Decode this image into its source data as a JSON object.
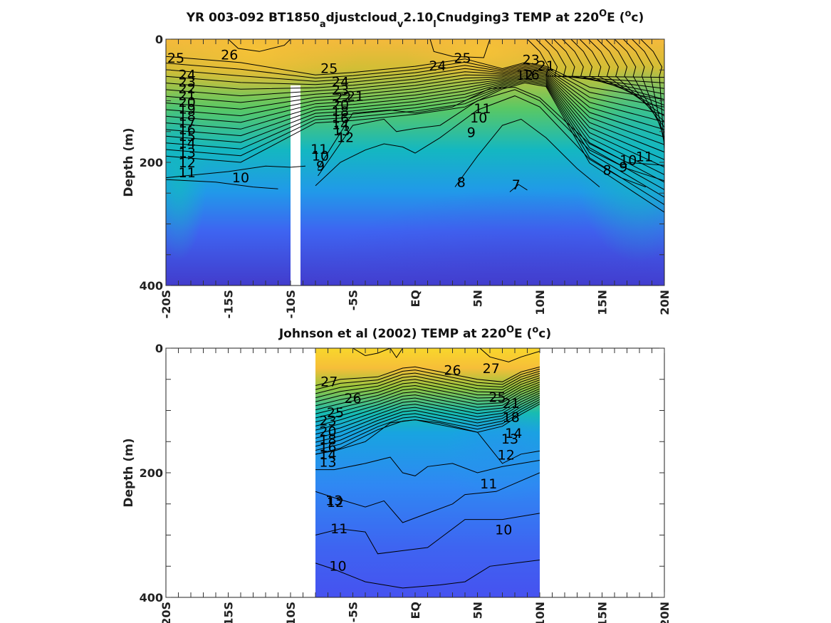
{
  "chart_data": [
    {
      "type": "contour",
      "title_parts": [
        "YR 003-092 BT1850",
        "a",
        "djustcloud",
        "v",
        "2.10",
        "l",
        "Cnudging3 TEMP at 220",
        "O",
        "E (",
        "o",
        "c)"
      ],
      "xlabel": "",
      "ylabel": "Depth (m)",
      "xlim": [
        -20,
        20
      ],
      "ylim": [
        400,
        0
      ],
      "x_ticks": [
        -20,
        -15,
        -10,
        -5,
        0,
        5,
        10,
        15,
        20
      ],
      "x_tick_labels": [
        "-20S",
        "-15S",
        "-10S",
        "-5S",
        "EQ",
        "5N",
        "10N",
        "15N",
        "20N"
      ],
      "y_ticks": [
        0,
        200,
        400
      ],
      "y_tick_labels": [
        "0",
        "200",
        "400"
      ],
      "data_extent_x": [
        -20,
        20
      ],
      "missing_column": {
        "x": [
          -10,
          -9.2
        ],
        "depth_from": 75
      },
      "colormap": "parula",
      "contour_interval": 1,
      "contour_labels": [
        {
          "x": -19.2,
          "depth": 30,
          "text": "25"
        },
        {
          "x": -14.9,
          "depth": 25,
          "text": "26"
        },
        {
          "x": -6.9,
          "depth": 47,
          "text": "25"
        },
        {
          "x": 1.8,
          "depth": 43,
          "text": "24"
        },
        {
          "x": 3.8,
          "depth": 30,
          "text": "25"
        },
        {
          "x": 9.3,
          "depth": 33,
          "text": "23"
        },
        {
          "x": 10.5,
          "depth": 43,
          "text": "21"
        },
        {
          "x": 9.3,
          "depth": 57,
          "text": "16"
        },
        {
          "x": 8.8,
          "depth": 58,
          "text": "12"
        },
        {
          "x": -18.3,
          "depth": 57,
          "text": "24"
        },
        {
          "x": -18.3,
          "depth": 69,
          "text": "23"
        },
        {
          "x": -18.3,
          "depth": 80,
          "text": "22"
        },
        {
          "x": -18.3,
          "depth": 91,
          "text": "21"
        },
        {
          "x": -18.3,
          "depth": 102,
          "text": "20"
        },
        {
          "x": -18.3,
          "depth": 113,
          "text": "19"
        },
        {
          "x": -18.3,
          "depth": 124,
          "text": "18"
        },
        {
          "x": -18.3,
          "depth": 135,
          "text": "17"
        },
        {
          "x": -18.3,
          "depth": 146,
          "text": "16"
        },
        {
          "x": -18.3,
          "depth": 157,
          "text": "15"
        },
        {
          "x": -18.3,
          "depth": 168,
          "text": "14"
        },
        {
          "x": -18.3,
          "depth": 184,
          "text": "13"
        },
        {
          "x": -18.3,
          "depth": 200,
          "text": "12"
        },
        {
          "x": -18.3,
          "depth": 216,
          "text": "11"
        },
        {
          "x": -14.0,
          "depth": 224,
          "text": "10"
        },
        {
          "x": -6.0,
          "depth": 69,
          "text": "24"
        },
        {
          "x": -6.0,
          "depth": 82,
          "text": "23"
        },
        {
          "x": -5.8,
          "depth": 94,
          "text": "22"
        },
        {
          "x": -4.8,
          "depth": 92,
          "text": "21"
        },
        {
          "x": -6.0,
          "depth": 106,
          "text": "20"
        },
        {
          "x": -6.0,
          "depth": 117,
          "text": "18"
        },
        {
          "x": -6.0,
          "depth": 128,
          "text": "16"
        },
        {
          "x": -6.0,
          "depth": 138,
          "text": "14"
        },
        {
          "x": -5.9,
          "depth": 148,
          "text": "13"
        },
        {
          "x": -5.6,
          "depth": 159,
          "text": "12"
        },
        {
          "x": -7.7,
          "depth": 178,
          "text": "11"
        },
        {
          "x": -7.6,
          "depth": 189,
          "text": "10"
        },
        {
          "x": -7.6,
          "depth": 205,
          "text": "9"
        },
        {
          "x": 5.4,
          "depth": 112,
          "text": "11"
        },
        {
          "x": 5.1,
          "depth": 127,
          "text": "10"
        },
        {
          "x": 4.5,
          "depth": 151,
          "text": "9"
        },
        {
          "x": 3.7,
          "depth": 232,
          "text": "8"
        },
        {
          "x": 8.1,
          "depth": 236,
          "text": "7"
        },
        {
          "x": 15.4,
          "depth": 212,
          "text": "8"
        },
        {
          "x": 16.7,
          "depth": 207,
          "text": "9"
        },
        {
          "x": 17.1,
          "depth": 196,
          "text": "10"
        },
        {
          "x": 18.4,
          "depth": 190,
          "text": "11"
        }
      ]
    },
    {
      "type": "contour",
      "title_parts": [
        "Johnson et al (2002) TEMP at 220",
        "O",
        "E (",
        "o",
        "c)"
      ],
      "xlabel": "",
      "ylabel": "Depth (m)",
      "xlim": [
        -20,
        20
      ],
      "ylim": [
        400,
        0
      ],
      "x_ticks": [
        -20,
        -15,
        -10,
        -5,
        0,
        5,
        10,
        15,
        20
      ],
      "x_tick_labels": [
        "-20S",
        "-15S",
        "-10S",
        "-5S",
        "EQ",
        "5N",
        "10N",
        "15N",
        "20N"
      ],
      "y_ticks": [
        0,
        200,
        400
      ],
      "y_tick_labels": [
        "0",
        "200",
        "400"
      ],
      "data_extent_x": [
        -8,
        10
      ],
      "colormap": "parula",
      "contour_interval": 1,
      "contour_labels": [
        {
          "x": -6.9,
          "depth": 53,
          "text": "27"
        },
        {
          "x": 3.0,
          "depth": 35,
          "text": "26"
        },
        {
          "x": 6.1,
          "depth": 32,
          "text": "27"
        },
        {
          "x": -5.0,
          "depth": 80,
          "text": "26"
        },
        {
          "x": 6.6,
          "depth": 78,
          "text": "25"
        },
        {
          "x": -6.4,
          "depth": 103,
          "text": "25"
        },
        {
          "x": -7.0,
          "depth": 116,
          "text": "23"
        },
        {
          "x": -7.0,
          "depth": 133,
          "text": "20"
        },
        {
          "x": -7.0,
          "depth": 146,
          "text": "18"
        },
        {
          "x": -7.0,
          "depth": 158,
          "text": "16"
        },
        {
          "x": -7.0,
          "depth": 170,
          "text": "14"
        },
        {
          "x": -7.0,
          "depth": 182,
          "text": "13"
        },
        {
          "x": -6.5,
          "depth": 244,
          "text": "13"
        },
        {
          "x": -6.4,
          "depth": 247,
          "text": "12"
        },
        {
          "x": 7.3,
          "depth": 171,
          "text": "12"
        },
        {
          "x": 7.6,
          "depth": 145,
          "text": "13"
        },
        {
          "x": 7.9,
          "depth": 136,
          "text": "14"
        },
        {
          "x": 7.7,
          "depth": 110,
          "text": "18"
        },
        {
          "x": 7.7,
          "depth": 88,
          "text": "21"
        },
        {
          "x": 5.9,
          "depth": 217,
          "text": "11"
        },
        {
          "x": -6.1,
          "depth": 289,
          "text": "11"
        },
        {
          "x": 7.1,
          "depth": 291,
          "text": "10"
        },
        {
          "x": -6.2,
          "depth": 349,
          "text": "10"
        }
      ]
    }
  ]
}
